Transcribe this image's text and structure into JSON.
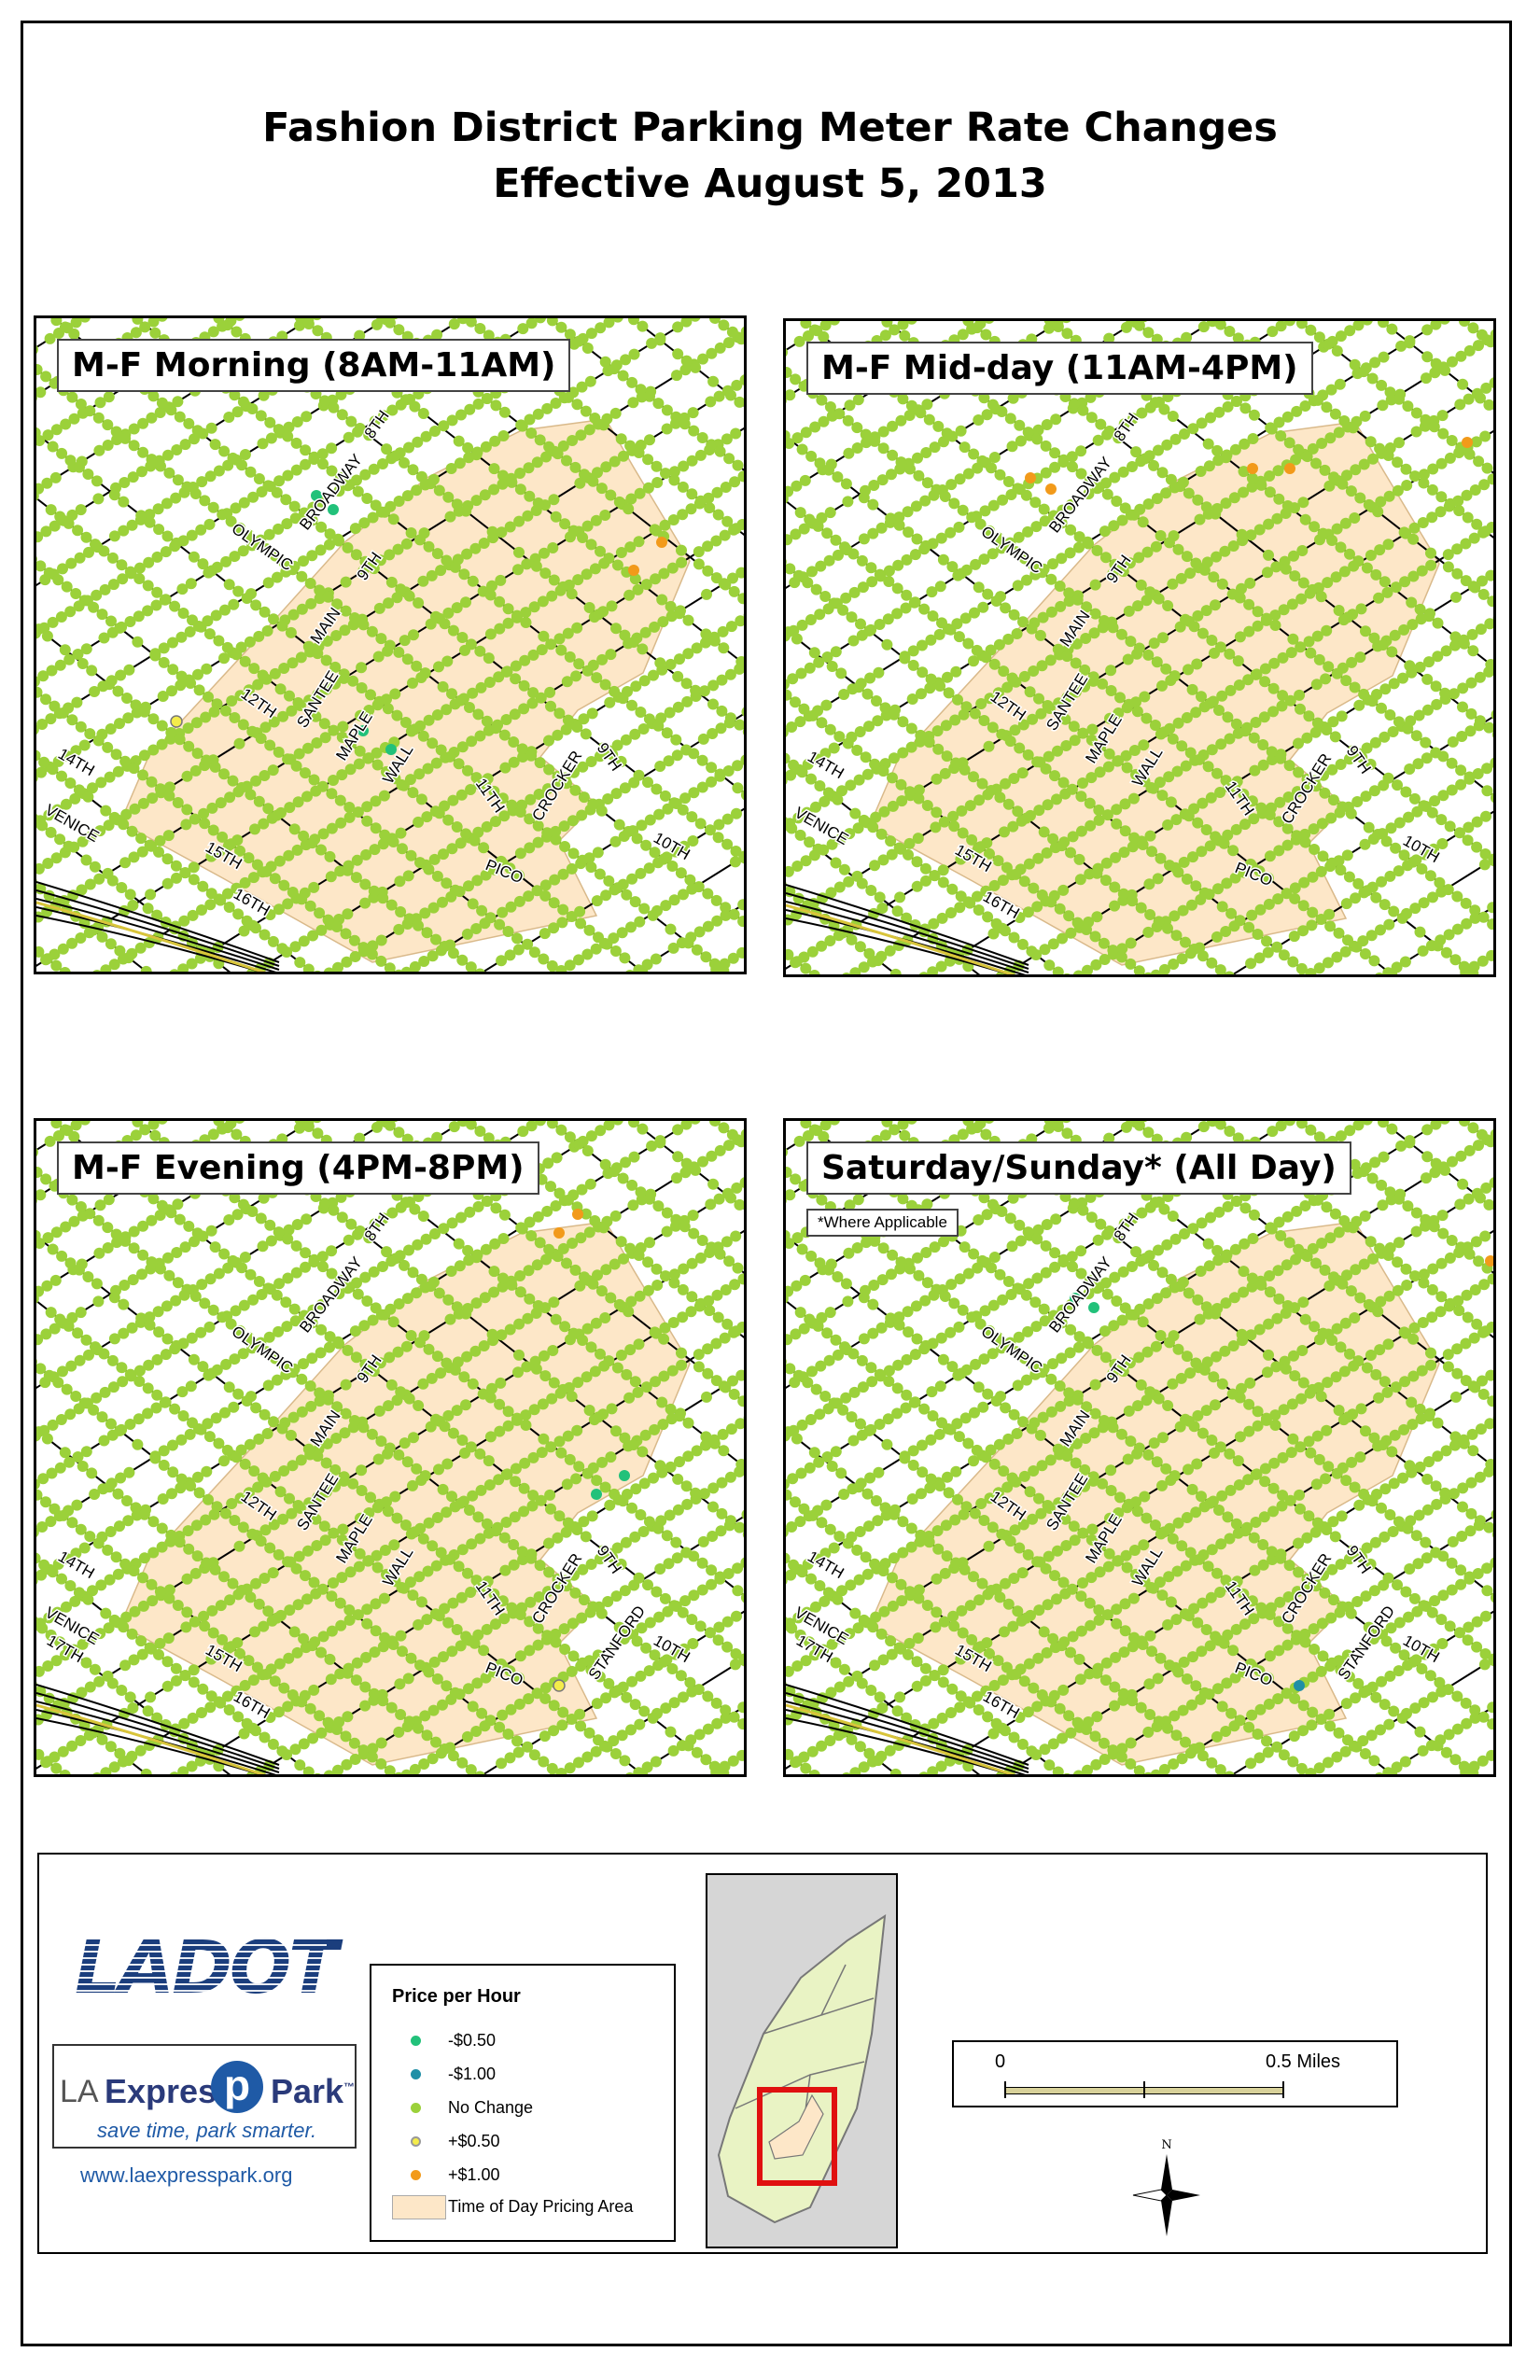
{
  "title": "Fashion District Parking Meter Rate Changes",
  "subtitle": "Effective August 5, 2013",
  "panels": [
    {
      "label": "M-F Morning (8AM-11AM)",
      "note": ""
    },
    {
      "label": "M-F Mid-day (11AM-4PM)",
      "note": ""
    },
    {
      "label": "M-F Evening (4PM-8PM)",
      "note": ""
    },
    {
      "label": "Saturday/Sunday* (All Day)",
      "note": "*Where Applicable"
    }
  ],
  "street_labels": {
    "8th": "8TH",
    "9th": "9TH",
    "olympic": "OLYMPIC",
    "broadway": "BROADWAY",
    "main": "MAIN",
    "santee": "SANTEE",
    "maple": "MAPLE",
    "wall": "WALL",
    "12th": "12TH",
    "14th": "14TH",
    "15th": "15TH",
    "16th": "16TH",
    "11th": "11TH",
    "10th": "10TH",
    "crocker": "CROCKER",
    "pico": "PICO",
    "venice": "VENICE",
    "17th": "17TH",
    "stanford": "STANFORD"
  },
  "legend": {
    "title": "Price per Hour",
    "items": [
      {
        "label": "-$0.50",
        "color": "#22c17a"
      },
      {
        "label": "-$1.00",
        "color": "#1f8fa6"
      },
      {
        "label": "No Change",
        "color": "#9bd13a"
      },
      {
        "label": "+$0.50",
        "color": "#f4ec4a"
      },
      {
        "label": "+$1.00",
        "color": "#f29a1a"
      }
    ],
    "area_label": "Time of Day Pricing Area"
  },
  "branding": {
    "ladot": "LADOT",
    "ep_la": "LA",
    "ep_express": "Express",
    "ep_p": "p",
    "ep_park": "Park",
    "ep_tm": "™",
    "tagline": "save time, park smarter.",
    "url": "www.laexpresspark.org"
  },
  "scale": {
    "start": "0",
    "end": "0.5 Miles"
  },
  "north_label": "N",
  "colors": {
    "meter_green": "#9bd13a",
    "pricing_area": "#fde7c8",
    "street": "#000000"
  }
}
